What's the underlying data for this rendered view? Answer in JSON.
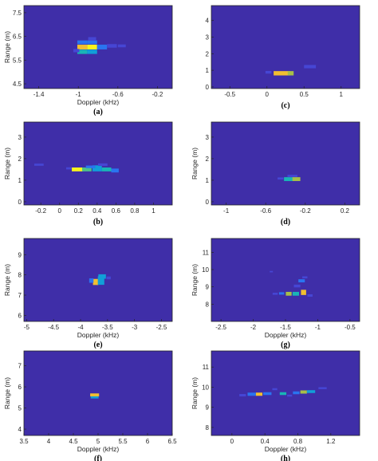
{
  "colors": {
    "background": "#3f2ea8",
    "frame": "#262626",
    "colormap": [
      "#3f2ea8",
      "#4646d4",
      "#2a74f0",
      "#119fd8",
      "#19b5b6",
      "#4cc18a",
      "#a7bf48",
      "#f2bf30",
      "#f8f41c"
    ]
  },
  "chart_data": [
    {
      "type": "heatmap",
      "caption": "(a)",
      "xlabel": "Doppler (kHz)",
      "ylabel": "Range (m)",
      "xlim": [
        -1.55,
        -0.05
      ],
      "ylim": [
        4.3,
        7.8
      ],
      "xticks": [
        -1.4,
        -1,
        -0.6,
        -0.2
      ],
      "xticklabels": [
        "-1.4",
        "-1",
        "-0.6",
        "-0.2"
      ],
      "yticks": [
        4.5,
        5.5,
        6.5,
        7.5
      ],
      "yticklabels": [
        "4.5",
        "5.5",
        "6.5",
        "7.5"
      ],
      "cells": [
        {
          "x": -0.96,
          "y": 6.05,
          "w": 0.1,
          "h": 0.2,
          "v": 0.85
        },
        {
          "x": -0.86,
          "y": 6.05,
          "w": 0.1,
          "h": 0.2,
          "v": 1.0
        },
        {
          "x": -0.96,
          "y": 5.85,
          "w": 0.1,
          "h": 0.18,
          "v": 0.45
        },
        {
          "x": -0.86,
          "y": 5.85,
          "w": 0.1,
          "h": 0.18,
          "v": 0.4
        },
        {
          "x": -0.96,
          "y": 6.25,
          "w": 0.1,
          "h": 0.16,
          "v": 0.28
        },
        {
          "x": -0.86,
          "y": 6.25,
          "w": 0.1,
          "h": 0.16,
          "v": 0.22
        },
        {
          "x": -0.76,
          "y": 6.05,
          "w": 0.1,
          "h": 0.2,
          "v": 0.28
        },
        {
          "x": -0.66,
          "y": 6.1,
          "w": 0.1,
          "h": 0.15,
          "v": 0.18
        },
        {
          "x": -0.56,
          "y": 6.1,
          "w": 0.08,
          "h": 0.12,
          "v": 0.12
        },
        {
          "x": -0.86,
          "y": 6.4,
          "w": 0.08,
          "h": 0.14,
          "v": 0.12
        },
        {
          "x": -1.02,
          "y": 5.9,
          "w": 0.06,
          "h": 0.14,
          "v": 0.12
        }
      ]
    },
    {
      "type": "heatmap",
      "caption": "(c)",
      "xlabel": "",
      "ylabel": "",
      "xlim": [
        -0.75,
        1.25
      ],
      "ylim": [
        -0.1,
        4.9
      ],
      "xticks": [
        -0.5,
        0,
        0.5,
        1
      ],
      "xticklabels": [
        "-0.5",
        "0",
        "0.5",
        "1"
      ],
      "yticks": [
        0,
        1,
        2,
        3,
        4
      ],
      "yticklabels": [
        "0",
        "1",
        "2",
        "3",
        "4"
      ],
      "cells": [
        {
          "x": 0.2,
          "y": 0.82,
          "w": 0.22,
          "h": 0.26,
          "v": 0.9
        },
        {
          "x": 0.32,
          "y": 0.82,
          "w": 0.08,
          "h": 0.26,
          "v": 0.78
        },
        {
          "x": 0.58,
          "y": 1.22,
          "w": 0.16,
          "h": 0.2,
          "v": 0.15
        },
        {
          "x": 0.02,
          "y": 0.88,
          "w": 0.08,
          "h": 0.16,
          "v": 0.1
        }
      ]
    },
    {
      "type": "heatmap",
      "caption": "(b)",
      "xlabel": "",
      "ylabel": "Range (m)",
      "xlim": [
        -0.38,
        1.2
      ],
      "ylim": [
        -0.15,
        3.7
      ],
      "xticks": [
        -0.2,
        0,
        0.2,
        0.4,
        0.6,
        0.8,
        1
      ],
      "xticklabels": [
        "-0.2",
        "0",
        "0.2",
        "0.4",
        "0.6",
        "0.8",
        "1"
      ],
      "yticks": [
        0,
        1,
        2,
        3
      ],
      "yticklabels": [
        "0",
        "1",
        "2",
        "3"
      ],
      "cells": [
        {
          "x": 0.19,
          "y": 1.5,
          "w": 0.12,
          "h": 0.18,
          "v": 0.95
        },
        {
          "x": 0.29,
          "y": 1.5,
          "w": 0.1,
          "h": 0.18,
          "v": 0.6
        },
        {
          "x": 0.4,
          "y": 1.55,
          "w": 0.1,
          "h": 0.28,
          "v": 0.35
        },
        {
          "x": 0.5,
          "y": 1.5,
          "w": 0.1,
          "h": 0.18,
          "v": 0.5
        },
        {
          "x": 0.59,
          "y": 1.45,
          "w": 0.08,
          "h": 0.18,
          "v": 0.25
        },
        {
          "x": 0.33,
          "y": 1.62,
          "w": 0.1,
          "h": 0.12,
          "v": 0.2
        },
        {
          "x": 0.46,
          "y": 1.72,
          "w": 0.1,
          "h": 0.12,
          "v": 0.18
        },
        {
          "x": -0.22,
          "y": 1.72,
          "w": 0.1,
          "h": 0.1,
          "v": 0.1
        },
        {
          "x": 0.1,
          "y": 1.55,
          "w": 0.06,
          "h": 0.1,
          "v": 0.15
        }
      ]
    },
    {
      "type": "heatmap",
      "caption": "(d)",
      "xlabel": "",
      "ylabel": "Range (m)",
      "xlim": [
        -1.15,
        0.35
      ],
      "ylim": [
        -0.15,
        3.7
      ],
      "xticks": [
        -1,
        -0.6,
        -0.2,
        0.2
      ],
      "xticklabels": [
        "-1",
        "-0.6",
        "-0.2",
        "0.2"
      ],
      "yticks": [
        0,
        1,
        2,
        3
      ],
      "yticklabels": [
        "0",
        "1",
        "2",
        "3"
      ],
      "cells": [
        {
          "x": -0.37,
          "y": 1.05,
          "w": 0.09,
          "h": 0.18,
          "v": 0.5
        },
        {
          "x": -0.29,
          "y": 1.05,
          "w": 0.08,
          "h": 0.18,
          "v": 0.8
        },
        {
          "x": -0.33,
          "y": 1.2,
          "w": 0.1,
          "h": 0.1,
          "v": 0.18
        },
        {
          "x": -0.45,
          "y": 1.08,
          "w": 0.06,
          "h": 0.1,
          "v": 0.12
        }
      ]
    },
    {
      "type": "heatmap",
      "caption": "(e)",
      "xlabel": "Doppler (kHz)",
      "ylabel": "Range (m)",
      "xlim": [
        -5.05,
        -2.3
      ],
      "ylim": [
        5.7,
        9.8
      ],
      "xticks": [
        -5,
        -4.5,
        -4,
        -3.5,
        -3,
        -2.5
      ],
      "xticklabels": [
        "-5",
        "-4.5",
        "-4",
        "-3.5",
        "-3",
        "-2.5"
      ],
      "yticks": [
        6,
        7,
        8,
        9
      ],
      "yticklabels": [
        "6",
        "7",
        "8",
        "9"
      ],
      "cells": [
        {
          "x": -3.72,
          "y": 7.65,
          "w": 0.1,
          "h": 0.3,
          "v": 0.88
        },
        {
          "x": -3.62,
          "y": 7.72,
          "w": 0.12,
          "h": 0.42,
          "v": 0.42
        },
        {
          "x": -3.6,
          "y": 7.92,
          "w": 0.14,
          "h": 0.22,
          "v": 0.33
        },
        {
          "x": -3.8,
          "y": 7.72,
          "w": 0.08,
          "h": 0.22,
          "v": 0.2
        },
        {
          "x": -3.48,
          "y": 7.85,
          "w": 0.08,
          "h": 0.14,
          "v": 0.12
        }
      ]
    },
    {
      "type": "heatmap",
      "caption": "(g)",
      "xlabel": "Doppler (kHz)",
      "ylabel": "Range (m)",
      "xlim": [
        -2.65,
        -0.35
      ],
      "ylim": [
        7.0,
        11.8
      ],
      "xticks": [
        -2.5,
        -2,
        -1.5,
        -1,
        -0.5
      ],
      "xticklabels": [
        "-2.5",
        "-2",
        "-1.5",
        "-1",
        "-0.5"
      ],
      "yticks": [
        8,
        9,
        10,
        11
      ],
      "yticklabels": [
        "8",
        "9",
        "10",
        "11"
      ],
      "cells": [
        {
          "x": -1.45,
          "y": 8.6,
          "w": 0.09,
          "h": 0.22,
          "v": 0.72
        },
        {
          "x": -1.34,
          "y": 8.6,
          "w": 0.1,
          "h": 0.22,
          "v": 0.5
        },
        {
          "x": -1.22,
          "y": 8.68,
          "w": 0.08,
          "h": 0.3,
          "v": 0.82
        },
        {
          "x": -1.25,
          "y": 9.35,
          "w": 0.1,
          "h": 0.18,
          "v": 0.28
        },
        {
          "x": -1.56,
          "y": 8.62,
          "w": 0.08,
          "h": 0.14,
          "v": 0.22
        },
        {
          "x": -1.66,
          "y": 8.6,
          "w": 0.08,
          "h": 0.12,
          "v": 0.15
        },
        {
          "x": -1.32,
          "y": 9.05,
          "w": 0.1,
          "h": 0.16,
          "v": 0.18
        },
        {
          "x": -1.12,
          "y": 8.5,
          "w": 0.08,
          "h": 0.14,
          "v": 0.12
        },
        {
          "x": -1.2,
          "y": 9.55,
          "w": 0.08,
          "h": 0.12,
          "v": 0.12
        },
        {
          "x": -1.72,
          "y": 9.88,
          "w": 0.05,
          "h": 0.08,
          "v": 0.08
        }
      ]
    },
    {
      "type": "heatmap",
      "caption": "(f)",
      "xlabel": "Doppler (kHz)",
      "ylabel": "Range (m)",
      "xlim": [
        3.5,
        6.5
      ],
      "ylim": [
        3.7,
        7.7
      ],
      "xticks": [
        3.5,
        4,
        4.5,
        5,
        5.5,
        6,
        6.5
      ],
      "xticklabels": [
        "3.5",
        "4",
        "4.5",
        "5",
        "5.5",
        "6",
        "6.5"
      ],
      "yticks": [
        4,
        5,
        6,
        7
      ],
      "yticklabels": [
        "4",
        "5",
        "6",
        "7"
      ],
      "cells": [
        {
          "x": 4.93,
          "y": 5.62,
          "w": 0.18,
          "h": 0.14,
          "v": 0.85
        },
        {
          "x": 4.93,
          "y": 5.5,
          "w": 0.16,
          "h": 0.1,
          "v": 0.35
        }
      ]
    },
    {
      "type": "heatmap",
      "caption": "(h)",
      "xlabel": "Doppler (kHz)",
      "ylabel": "Range (m)",
      "xlim": [
        -0.25,
        1.55
      ],
      "ylim": [
        7.6,
        11.8
      ],
      "xticks": [
        0,
        0.4,
        0.8,
        1.2
      ],
      "xticklabels": [
        "0",
        "0.4",
        "0.8",
        "1.2"
      ],
      "yticks": [
        8,
        9,
        10,
        11
      ],
      "yticklabels": [
        "8",
        "9",
        "10",
        "11"
      ],
      "cells": [
        {
          "x": 0.33,
          "y": 9.65,
          "w": 0.08,
          "h": 0.16,
          "v": 0.88
        },
        {
          "x": 0.24,
          "y": 9.65,
          "w": 0.1,
          "h": 0.16,
          "v": 0.3
        },
        {
          "x": 0.43,
          "y": 9.68,
          "w": 0.1,
          "h": 0.14,
          "v": 0.28
        },
        {
          "x": 0.62,
          "y": 9.68,
          "w": 0.08,
          "h": 0.14,
          "v": 0.45
        },
        {
          "x": 0.87,
          "y": 9.76,
          "w": 0.08,
          "h": 0.16,
          "v": 0.8
        },
        {
          "x": 0.96,
          "y": 9.78,
          "w": 0.1,
          "h": 0.14,
          "v": 0.32
        },
        {
          "x": 0.78,
          "y": 9.72,
          "w": 0.08,
          "h": 0.14,
          "v": 0.25
        },
        {
          "x": 1.1,
          "y": 9.95,
          "w": 0.1,
          "h": 0.1,
          "v": 0.15
        },
        {
          "x": 0.13,
          "y": 9.6,
          "w": 0.08,
          "h": 0.12,
          "v": 0.15
        },
        {
          "x": 0.52,
          "y": 9.9,
          "w": 0.06,
          "h": 0.1,
          "v": 0.12
        },
        {
          "x": 0.7,
          "y": 9.58,
          "w": 0.06,
          "h": 0.1,
          "v": 0.12
        }
      ]
    }
  ]
}
